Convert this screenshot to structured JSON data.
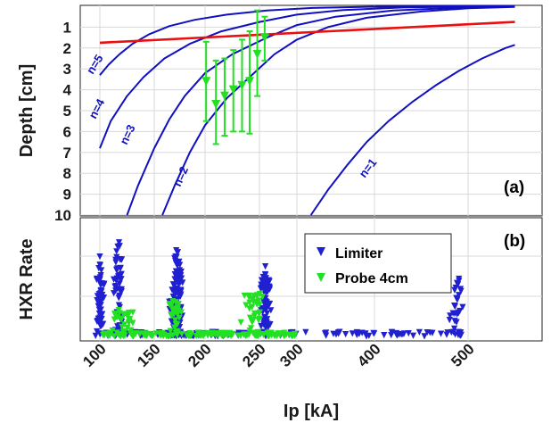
{
  "chart_data": [
    {
      "type": "line",
      "panel_tag": "(a)",
      "ylabel": "Depth [cm]",
      "xlim": [
        100,
        550
      ],
      "ylim": [
        0,
        10
      ],
      "y_inverted": true,
      "x_ticks": [
        100,
        150,
        200,
        250,
        300,
        400,
        500
      ],
      "y_ticks": [
        1,
        2,
        3,
        4,
        5,
        6,
        7,
        8,
        9,
        10
      ],
      "grid": true,
      "colors": {
        "curves": "#1010c0",
        "red_line": "#e81010",
        "error_bars": "#22e022"
      },
      "series": [
        {
          "label": "n=5",
          "x": [
            100,
            108,
            118,
            130,
            145,
            165,
            190,
            220,
            260,
            320,
            400,
            480,
            550
          ],
          "y": [
            3.3,
            2.8,
            2.3,
            1.8,
            1.35,
            0.95,
            0.65,
            0.4,
            0.2,
            0.08,
            0.02,
            0.0,
            0.0
          ]
        },
        {
          "label": "n=4",
          "x": [
            100,
            110,
            125,
            140,
            160,
            185,
            215,
            250,
            300,
            360,
            430,
            500,
            550
          ],
          "y": [
            6.8,
            5.5,
            4.3,
            3.4,
            2.5,
            1.8,
            1.2,
            0.75,
            0.4,
            0.18,
            0.06,
            0.01,
            0.0
          ]
        },
        {
          "label": "n=3",
          "x": [
            125,
            135,
            150,
            165,
            180,
            200,
            225,
            260,
            300,
            350,
            420,
            500,
            550
          ],
          "y": [
            10.0,
            8.6,
            6.8,
            5.4,
            4.3,
            3.2,
            2.3,
            1.5,
            0.9,
            0.5,
            0.2,
            0.05,
            0.0
          ]
        },
        {
          "label": "n=2",
          "x": [
            158,
            170,
            185,
            200,
            220,
            245,
            270,
            300,
            340,
            390,
            450,
            500,
            550
          ],
          "y": [
            10.0,
            8.6,
            7.0,
            5.7,
            4.4,
            3.2,
            2.3,
            1.6,
            1.0,
            0.55,
            0.25,
            0.1,
            0.03
          ]
        },
        {
          "label": "n=1",
          "x": [
            318,
            340,
            365,
            390,
            415,
            440,
            465,
            490,
            515,
            540,
            550
          ],
          "y": [
            10.0,
            8.8,
            7.6,
            6.5,
            5.5,
            4.6,
            3.8,
            3.1,
            2.5,
            2.0,
            1.85
          ]
        },
        {
          "label": "",
          "x": [
            100,
            550
          ],
          "y": [
            1.75,
            0.75
          ]
        }
      ],
      "error_points": [
        {
          "x": 201,
          "y": 3.6,
          "low": 1.7,
          "high": 5.5
        },
        {
          "x": 210,
          "y": 4.7,
          "low": 2.6,
          "high": 6.6
        },
        {
          "x": 218,
          "y": 4.3,
          "low": 2.5,
          "high": 6.2
        },
        {
          "x": 226,
          "y": 4.0,
          "low": 2.1,
          "high": 6.0
        },
        {
          "x": 234,
          "y": 3.8,
          "low": 1.6,
          "high": 6.0
        },
        {
          "x": 241,
          "y": 3.6,
          "low": 1.2,
          "high": 6.1
        },
        {
          "x": 248,
          "y": 2.3,
          "low": 0.2,
          "high": 4.3
        },
        {
          "x": 257,
          "y": 1.5,
          "low": 0.5,
          "high": 2.6
        }
      ]
    },
    {
      "type": "scatter",
      "panel_tag": "(b)",
      "xlabel": "Ip [kA]",
      "ylabel": "HXR Rate",
      "xlim": [
        100,
        550
      ],
      "x_ticks": [
        100,
        150,
        200,
        250,
        300,
        400,
        500
      ],
      "grid": true,
      "legend_position": "top-right",
      "series": [
        {
          "name": "Limiter",
          "color": "#2020d0",
          "marker": "down-triangle",
          "density": 1.0
        },
        {
          "name": "Probe 4cm",
          "color": "#22e022",
          "marker": "down-triangle",
          "density": 0.55
        }
      ]
    }
  ]
}
